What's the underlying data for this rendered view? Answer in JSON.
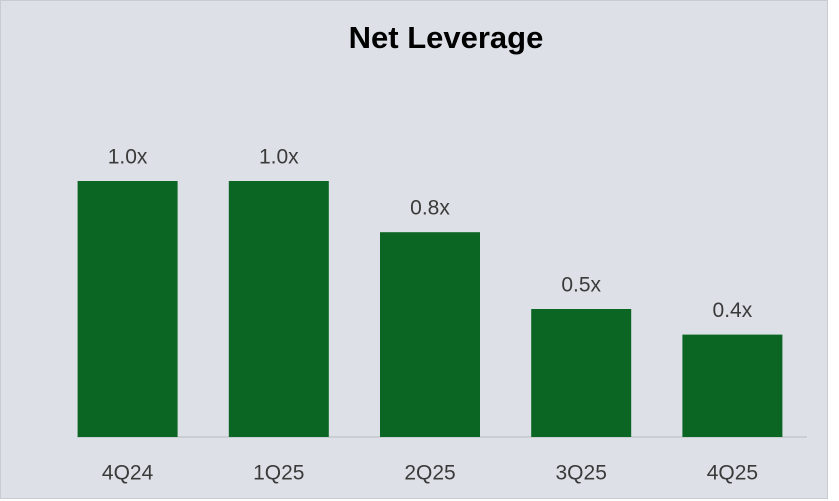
{
  "chart_data": {
    "type": "bar",
    "title": "Net Leverage",
    "categories": [
      "4Q24",
      "1Q25",
      "2Q25",
      "3Q25",
      "4Q25"
    ],
    "values": [
      1.0,
      1.0,
      0.8,
      0.5,
      0.4
    ],
    "value_labels": [
      "1.0x",
      "1.0x",
      "0.8x",
      "0.5x",
      "0.4x"
    ],
    "color": "#0b6623"
  }
}
